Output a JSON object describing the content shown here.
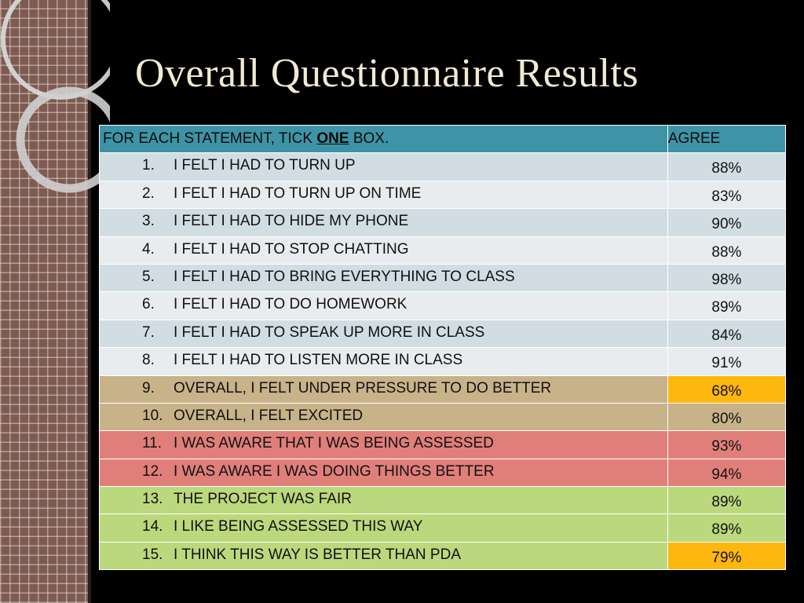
{
  "slide": {
    "title": "Overall Questionnaire Results"
  },
  "table": {
    "header": {
      "statement_prefix": "FOR EACH STATEMENT, TICK ",
      "statement_emphasis": "ONE",
      "statement_suffix": " BOX.",
      "agree": "AGREE"
    },
    "rows": [
      {
        "num": "1.",
        "statement": "I FELT I HAD TO TURN UP",
        "agree": "88%",
        "group": "blue"
      },
      {
        "num": "2.",
        "statement": "I FELT I HAD TO TURN UP ON TIME",
        "agree": "83%",
        "group": "blue"
      },
      {
        "num": "3.",
        "statement": "I FELT I HAD TO HIDE MY PHONE",
        "agree": "90%",
        "group": "blue"
      },
      {
        "num": "4.",
        "statement": "I FELT I HAD TO STOP CHATTING",
        "agree": "88%",
        "group": "blue"
      },
      {
        "num": "5.",
        "statement": "I FELT I HAD TO BRING EVERYTHING TO CLASS",
        "agree": "98%",
        "group": "blue"
      },
      {
        "num": "6.",
        "statement": "I FELT I HAD TO DO HOMEWORK",
        "agree": "89%",
        "group": "blue"
      },
      {
        "num": "7.",
        "statement": "I FELT I HAD TO SPEAK UP MORE  IN CLASS",
        "agree": "84%",
        "group": "blue"
      },
      {
        "num": "8.",
        "statement": "I FELT I HAD TO LISTEN MORE IN CLASS",
        "agree": "91%",
        "group": "blue"
      },
      {
        "num": "9.",
        "statement": "OVERALL, I FELT UNDER PRESSURE TO DO BETTER",
        "agree": "68%",
        "group": "tan",
        "highlight": true
      },
      {
        "num": "10.",
        "statement": "OVERALL, I FELT EXCITED",
        "agree": "80%",
        "group": "tan"
      },
      {
        "num": "11.",
        "statement": "I WAS AWARE THAT I WAS BEING ASSESSED",
        "agree": "93%",
        "group": "red"
      },
      {
        "num": "12.",
        "statement": "I WAS AWARE I WAS DOING THINGS BETTER",
        "agree": "94%",
        "group": "red"
      },
      {
        "num": "13.",
        "statement": "THE PROJECT WAS FAIR",
        "agree": "89%",
        "group": "green"
      },
      {
        "num": "14.",
        "statement": "I LIKE BEING ASSESSED THIS WAY",
        "agree": "89%",
        "group": "green"
      },
      {
        "num": "15.",
        "statement": "I THINK THIS WAY IS BETTER THAN PDA",
        "agree": "79%",
        "group": "green",
        "highlight": true
      }
    ]
  },
  "colors": {
    "background": "#000000",
    "title": "#f1ead3",
    "header": "#3e93a6",
    "group_blue_a": "#d2dde3",
    "group_blue_b": "#e8ecef",
    "group_tan": "#c8b289",
    "group_red": "#e07f7a",
    "group_green": "#bcd87d",
    "highlight": "#fdb70f"
  }
}
